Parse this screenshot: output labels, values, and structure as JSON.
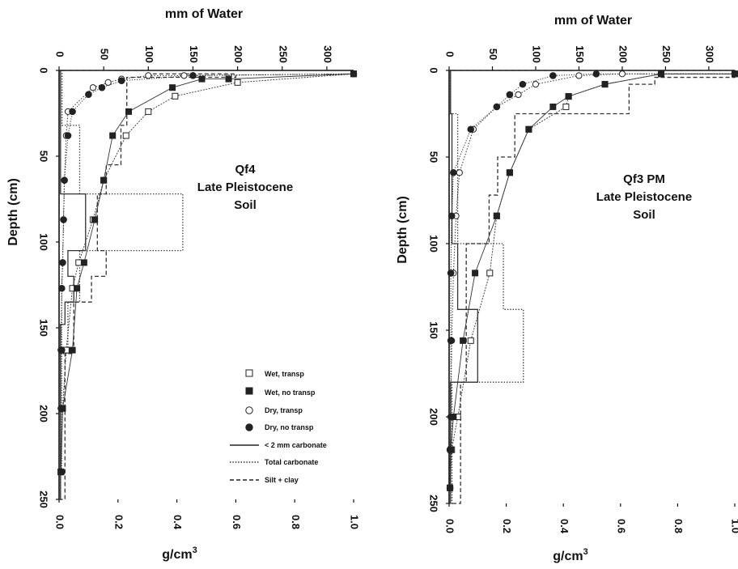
{
  "figure": {
    "top_axis_title": "mm of Water",
    "left_axis_title": "Depth (cm)",
    "bottom_axis_title": "g/cm",
    "bottom_axis_title_superscript": "3"
  },
  "legend": {
    "items": [
      {
        "key": "wet_transp",
        "label": "Wet, transp",
        "symbol": "open-square"
      },
      {
        "key": "wet_no_transp",
        "label": "Wet, no transp",
        "symbol": "filled-square"
      },
      {
        "key": "dry_transp",
        "label": "Dry, transp",
        "symbol": "open-circle"
      },
      {
        "key": "dry_no_transp",
        "label": "Dry, no transp",
        "symbol": "filled-circle"
      },
      {
        "key": "carb_lt2mm",
        "label": "< 2 mm carbonate",
        "symbol": "solid-line"
      },
      {
        "key": "total_carb",
        "label": "Total carbonate",
        "symbol": "dotted-line"
      },
      {
        "key": "silt_clay",
        "label": "Silt + clay",
        "symbol": "dashed-line"
      }
    ]
  },
  "chart_data": [
    {
      "type": "line",
      "annotation": [
        "Qf4",
        "Late Pleistocene",
        "Soil"
      ],
      "top_axis": {
        "label": "mm of Water",
        "range": [
          0,
          330
        ],
        "ticks": [
          0,
          50,
          100,
          150,
          200,
          250,
          300
        ]
      },
      "bottom_axis": {
        "label": "g/cm3",
        "range": [
          0,
          1.0
        ],
        "ticks": [
          "0.0",
          "0.2",
          "0.4",
          "0.6",
          "0.8",
          "1.0"
        ]
      },
      "depth_axis": {
        "label": "Depth (cm)",
        "range": [
          0,
          250
        ],
        "inverted": true,
        "ticks": [
          0,
          50,
          100,
          150,
          200,
          250
        ]
      },
      "grid": false,
      "water_series": [
        {
          "key": "wet_transp",
          "name": "Wet, transp",
          "points": [
            [
              330,
              2
            ],
            [
              200,
              7
            ],
            [
              130,
              15
            ],
            [
              100,
              24
            ],
            [
              75,
              38
            ],
            [
              50,
              64
            ],
            [
              38,
              87
            ],
            [
              22,
              112
            ],
            [
              15,
              127
            ],
            [
              8,
              163
            ],
            [
              4,
              197
            ],
            [
              2,
              234
            ]
          ]
        },
        {
          "key": "wet_no_transp",
          "name": "Wet, no transp",
          "points": [
            [
              330,
              2
            ],
            [
              190,
              5
            ],
            [
              160,
              5
            ],
            [
              127,
              10
            ],
            [
              78,
              24
            ],
            [
              60,
              38
            ],
            [
              50,
              64
            ],
            [
              40,
              87
            ],
            [
              28,
              112
            ],
            [
              20,
              127
            ],
            [
              15,
              163
            ],
            [
              4,
              197
            ],
            [
              2,
              234
            ]
          ]
        },
        {
          "key": "dry_transp",
          "name": "Dry, transp",
          "points": [
            [
              330,
              2
            ],
            [
              140,
              3
            ],
            [
              100,
              3
            ],
            [
              70,
              5
            ],
            [
              55,
              7
            ],
            [
              38,
              10
            ],
            [
              10,
              24
            ],
            [
              8,
              38
            ],
            [
              6,
              64
            ],
            [
              5,
              87
            ],
            [
              4,
              112
            ],
            [
              3,
              127
            ],
            [
              2,
              163
            ],
            [
              2,
              197
            ],
            [
              2,
              234
            ]
          ]
        },
        {
          "key": "dry_no_transp",
          "name": "Dry, no transp",
          "points": [
            [
              330,
              2
            ],
            [
              150,
              3
            ],
            [
              70,
              6
            ],
            [
              48,
              10
            ],
            [
              33,
              14
            ],
            [
              15,
              24
            ],
            [
              10,
              38
            ],
            [
              6,
              64
            ],
            [
              5,
              87
            ],
            [
              4,
              112
            ],
            [
              3,
              127
            ],
            [
              3,
              163
            ],
            [
              3,
              197
            ],
            [
              3,
              234
            ]
          ]
        }
      ],
      "density_step_series": [
        {
          "key": "carb_lt2mm",
          "name": "< 2 mm carbonate",
          "steps": [
            [
              0,
              72,
              0.005
            ],
            [
              72,
              105,
              0.09
            ],
            [
              105,
              120,
              0.03
            ],
            [
              120,
              135,
              0.05
            ],
            [
              135,
              148,
              0.02
            ],
            [
              148,
              250,
              0.005
            ]
          ]
        },
        {
          "key": "total_carb",
          "name": "Total carbonate",
          "steps": [
            [
              0,
              32,
              0.01
            ],
            [
              32,
              72,
              0.07
            ],
            [
              72,
              105,
              0.42
            ],
            [
              105,
              135,
              0.07
            ],
            [
              135,
              165,
              0.03
            ],
            [
              165,
              250,
              0.005
            ]
          ]
        },
        {
          "key": "silt_clay",
          "name": "Silt + clay",
          "steps": [
            [
              0,
              2,
              0.3
            ],
            [
              2,
              4,
              0.6
            ],
            [
              4,
              32,
              0.23
            ],
            [
              32,
              55,
              0.21
            ],
            [
              55,
              72,
              0.16
            ],
            [
              72,
              105,
              0.13
            ],
            [
              105,
              120,
              0.16
            ],
            [
              120,
              135,
              0.11
            ],
            [
              135,
              165,
              0.05
            ],
            [
              165,
              250,
              0.02
            ]
          ]
        }
      ]
    },
    {
      "type": "line",
      "annotation": [
        "Qf3 PM",
        "Late Pleistocene",
        "Soil"
      ],
      "top_axis": {
        "label": "mm of Water",
        "range": [
          0,
          330
        ],
        "ticks": [
          0,
          50,
          100,
          150,
          200,
          250,
          300
        ]
      },
      "bottom_axis": {
        "label": "g/cm3",
        "range": [
          0,
          1.0
        ],
        "ticks": [
          "0.0",
          "0.2",
          "0.4",
          "0.6",
          "0.8",
          "1.0"
        ]
      },
      "depth_axis": {
        "label": "Depth (cm)",
        "range": [
          0,
          250
        ],
        "inverted": true,
        "ticks": [
          0,
          50,
          100,
          150,
          200,
          250
        ]
      },
      "grid": false,
      "water_series": [
        {
          "key": "wet_transp",
          "name": "Wet, transp",
          "points": [
            [
              330,
              2
            ],
            [
              245,
              2
            ],
            [
              180,
              8
            ],
            [
              138,
              15
            ],
            [
              135,
              21
            ],
            [
              92,
              34
            ],
            [
              70,
              59
            ],
            [
              55,
              84
            ],
            [
              47,
              117
            ],
            [
              25,
              156
            ],
            [
              10,
              200
            ],
            [
              3,
              219
            ],
            [
              1,
              241
            ]
          ]
        },
        {
          "key": "wet_no_transp",
          "name": "Wet, no transp",
          "points": [
            [
              330,
              2
            ],
            [
              245,
              2
            ],
            [
              180,
              8
            ],
            [
              138,
              15
            ],
            [
              120,
              21
            ],
            [
              92,
              34
            ],
            [
              70,
              59
            ],
            [
              55,
              84
            ],
            [
              30,
              117
            ],
            [
              16,
              156
            ],
            [
              5,
              200
            ],
            [
              2,
              219
            ],
            [
              1,
              241
            ]
          ]
        },
        {
          "key": "dry_transp",
          "name": "Dry, transp",
          "points": [
            [
              330,
              2
            ],
            [
              200,
              2
            ],
            [
              150,
              3
            ],
            [
              100,
              8
            ],
            [
              80,
              14
            ],
            [
              55,
              21
            ],
            [
              28,
              34
            ],
            [
              12,
              59
            ],
            [
              8,
              84
            ],
            [
              5,
              117
            ],
            [
              3,
              156
            ],
            [
              2,
              200
            ],
            [
              1,
              219
            ],
            [
              1,
              241
            ]
          ]
        },
        {
          "key": "dry_no_transp",
          "name": "Dry, no transp",
          "points": [
            [
              330,
              2
            ],
            [
              170,
              2
            ],
            [
              120,
              3
            ],
            [
              85,
              8
            ],
            [
              70,
              14
            ],
            [
              55,
              21
            ],
            [
              25,
              34
            ],
            [
              5,
              59
            ],
            [
              3,
              84
            ],
            [
              2,
              117
            ],
            [
              2,
              156
            ],
            [
              2,
              200
            ],
            [
              1,
              219
            ],
            [
              1,
              241
            ]
          ]
        }
      ],
      "density_step_series": [
        {
          "key": "carb_lt2mm",
          "name": "< 2 mm carbonate",
          "steps": [
            [
              0,
              25,
              0.005
            ],
            [
              25,
              100,
              0.01
            ],
            [
              100,
              138,
              0.03
            ],
            [
              138,
              180,
              0.1
            ],
            [
              180,
              250,
              0.005
            ]
          ]
        },
        {
          "key": "total_carb",
          "name": "Total carbonate",
          "steps": [
            [
              0,
              25,
              0.005
            ],
            [
              25,
              100,
              0.03
            ],
            [
              100,
              138,
              0.19
            ],
            [
              138,
              180,
              0.26
            ],
            [
              180,
              250,
              0.01
            ]
          ]
        },
        {
          "key": "silt_clay",
          "name": "Silt + clay",
          "steps": [
            [
              0,
              4,
              1.0
            ],
            [
              4,
              8,
              0.72
            ],
            [
              8,
              25,
              0.63
            ],
            [
              25,
              50,
              0.23
            ],
            [
              50,
              72,
              0.17
            ],
            [
              72,
              100,
              0.14
            ],
            [
              100,
              180,
              0.06
            ],
            [
              180,
              250,
              0.04
            ]
          ]
        }
      ]
    }
  ]
}
